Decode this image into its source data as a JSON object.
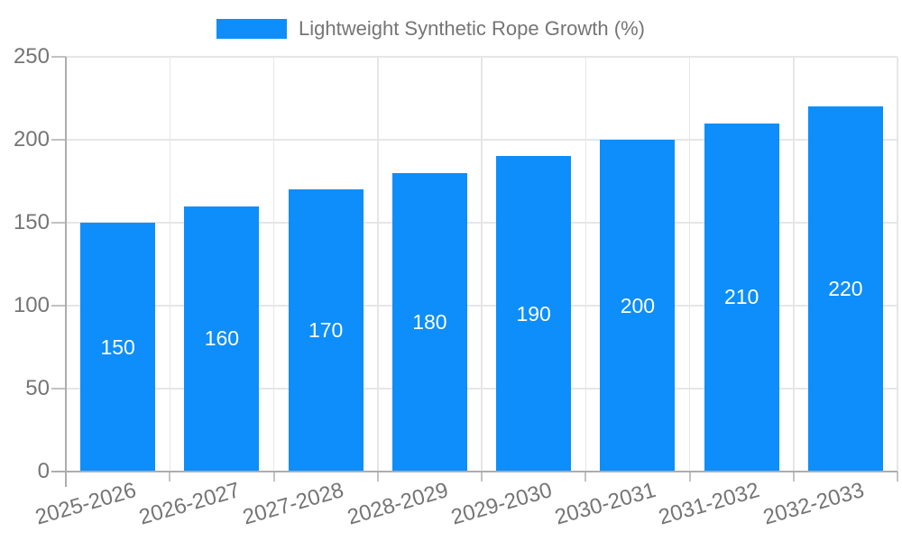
{
  "chart_data": {
    "type": "bar",
    "legend": {
      "position": "top",
      "label": "Lightweight Synthetic Rope Growth (%)"
    },
    "categories": [
      "2025-2026",
      "2026-2027",
      "2027-2028",
      "2028-2029",
      "2029-2030",
      "2030-2031",
      "2031-2032",
      "2032-2033"
    ],
    "series": [
      {
        "name": "Lightweight Synthetic Rope Growth (%)",
        "values": [
          150,
          160,
          170,
          180,
          190,
          200,
          210,
          220
        ]
      }
    ],
    "xlabel": "",
    "ylabel": "",
    "ylim": [
      0,
      250
    ],
    "yticks": [
      0,
      50,
      100,
      150,
      200,
      250
    ],
    "grid": true,
    "bar_value_labels": [
      150,
      160,
      170,
      180,
      190,
      200,
      210,
      220
    ],
    "x_label_rotation_deg": -16,
    "colors": {
      "bar": "#0D8EFA",
      "bar_label": "#FFFFFF",
      "axis_text": "#757575",
      "legend_text": "#757575",
      "gridline": "#E6E6E6",
      "axis_line": "#ADADAD",
      "tick": "#C2C2C2",
      "background": "#FFFFFF"
    }
  }
}
